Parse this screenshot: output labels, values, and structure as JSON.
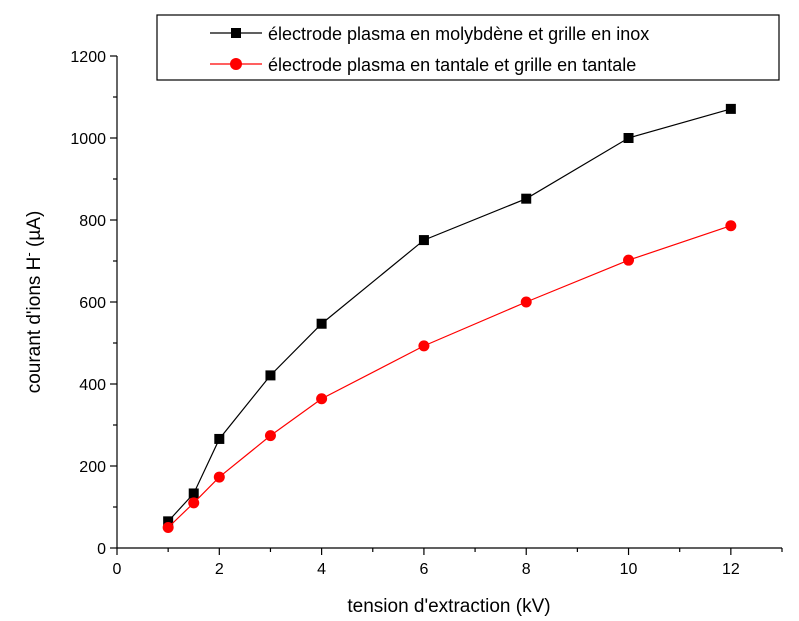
{
  "chart_data": {
    "type": "line",
    "xlabel": "tension d'extraction (kV)",
    "ylabel_main": "courant d'ions H",
    "ylabel_sup": "-",
    "ylabel_unit": " (µA)",
    "xlim": [
      0,
      13
    ],
    "ylim": [
      0,
      1200
    ],
    "xticks": [
      0,
      2,
      4,
      6,
      8,
      10,
      12
    ],
    "yticks": [
      0,
      200,
      400,
      600,
      800,
      1000,
      1200
    ],
    "legend_position": "top-right",
    "grid": false,
    "series": [
      {
        "name": "électrode plasma en molybdène et grille en inox",
        "marker": "square",
        "color": "#000000",
        "x": [
          1,
          1.5,
          2,
          3,
          4,
          6,
          8,
          10,
          12
        ],
        "y": [
          65,
          133,
          266,
          421,
          547,
          751,
          852,
          1000,
          1071
        ]
      },
      {
        "name": "électrode plasma en tantale et grille en tantale",
        "marker": "circle",
        "color": "#ff0000",
        "x": [
          1,
          1.5,
          2,
          3,
          4,
          6,
          8,
          10,
          12
        ],
        "y": [
          50,
          110,
          173,
          274,
          364,
          493,
          600,
          702,
          786
        ]
      }
    ]
  }
}
